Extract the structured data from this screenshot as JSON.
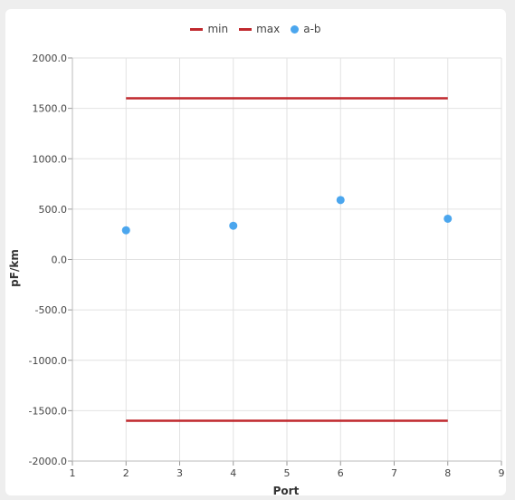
{
  "chart_data": {
    "type": "scatter",
    "xlabel": "Port",
    "ylabel": "pF/km",
    "xlim": [
      1,
      9
    ],
    "ylim": [
      -2000,
      2000
    ],
    "x_ticks": [
      "1",
      "2",
      "3",
      "4",
      "5",
      "6",
      "7",
      "8",
      "9"
    ],
    "y_ticks": [
      "2000.0",
      "1500.0",
      "1000.0",
      "500.0",
      "0.0",
      "-500.0",
      "-1000.0",
      "-1500.0",
      "-2000.0"
    ],
    "grid": true,
    "legend_position": "top-center",
    "series": [
      {
        "name": "min",
        "kind": "line",
        "color": "#c0282d",
        "x": [
          2,
          8
        ],
        "y": [
          -1600,
          -1600
        ]
      },
      {
        "name": "max",
        "kind": "line",
        "color": "#c0282d",
        "x": [
          2,
          8
        ],
        "y": [
          1600,
          1600
        ]
      },
      {
        "name": "a-b",
        "kind": "scatter",
        "color": "#4ba6ee",
        "x": [
          2,
          4,
          6,
          8
        ],
        "y": [
          290,
          335,
          590,
          405
        ]
      }
    ]
  }
}
